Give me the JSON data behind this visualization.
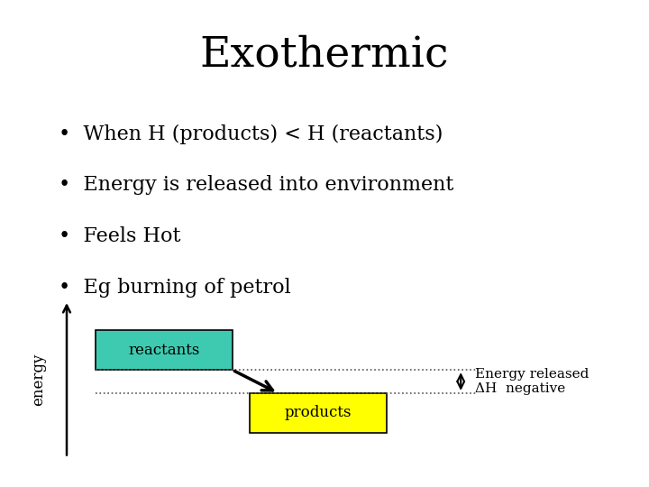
{
  "title": "Exothermic",
  "title_fontsize": 34,
  "bullet_points": [
    "When H (products) < H (reactants)",
    "Energy is released into environment",
    "Feels Hot",
    "Eg burning of petrol"
  ],
  "bullet_fontsize": 16,
  "bullet_color": "#000000",
  "bg_color": "#ffffff",
  "reactants_box_color": "#3ecab0",
  "products_box_color": "#ffff00",
  "reactants_label": "reactants",
  "products_label": "products",
  "energy_label": "energy",
  "annotation_text": "Energy released\nΔH  negative"
}
